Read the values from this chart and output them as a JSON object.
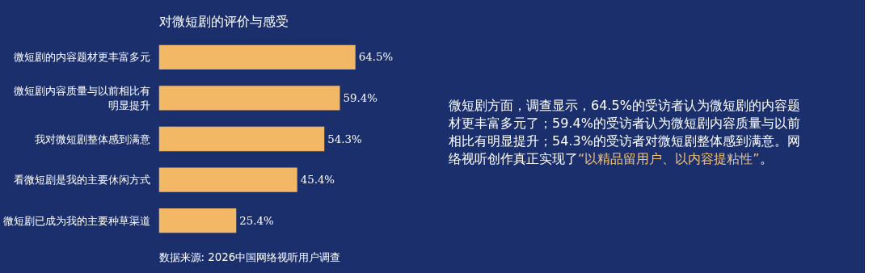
{
  "chart_data": {
    "type": "bar",
    "orientation": "horizontal",
    "title": "对微短剧的评价与感受",
    "categories": [
      "微短剧的内容题材更丰富多元",
      "微短剧内容质量与以前相比有明显提升",
      "我对微短剧整体感到满意",
      "看微短剧是我的主要休闲方式",
      "微短剧已成为我的主要种草渠道"
    ],
    "values": [
      64.5,
      59.4,
      54.3,
      45.4,
      25.4
    ],
    "value_labels": [
      "64.5%",
      "59.4%",
      "54.3%",
      "45.4%",
      "25.4%"
    ],
    "color": "#f2b866",
    "annotations": [
      "微短剧方面，调查显示，64.5%的受访者认为微短剧的内容题材更丰富多元了；59.4%的受访者认为微短剧内容质量与以前相比有明显提升；54.3%的受访者对微短剧整体感到满意。网络视听创作真正实现了",
      "“以精品留用户、以内容提粘性”",
      "。",
      "数据来源:  2026中国网络视听用户调查"
    ]
  }
}
